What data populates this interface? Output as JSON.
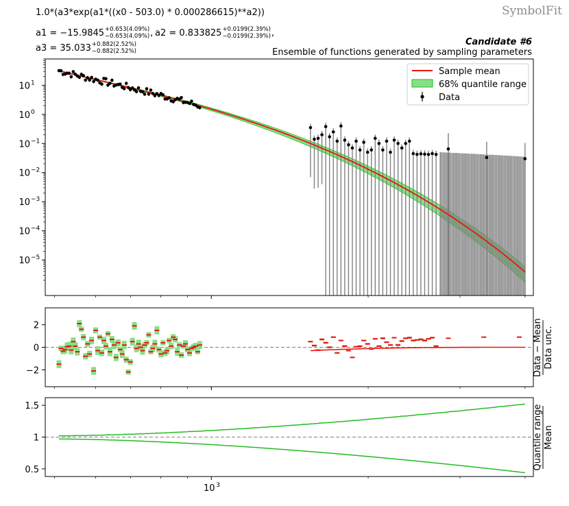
{
  "header": {
    "formula": "1.0*(a3*exp(a1*((x0 - 503.0) * 0.000286615)**a2))",
    "brand": "SymbolFit",
    "params": [
      {
        "name": "a1",
        "value": "−15.9845",
        "up": "+0.653(4.09%)",
        "down": "−0.653(4.09%)",
        "sep": ","
      },
      {
        "name": "a2",
        "value": "0.833825",
        "up": "+0.0199(2.39%)",
        "down": "−0.0199(2.39%)",
        "sep": ","
      },
      {
        "name": "a3",
        "value": "35.033",
        "up": "+0.882(2.52%)",
        "down": "−0.882(2.52%)",
        "sep": ""
      }
    ],
    "candidate": "Candidate #6",
    "subtitle": "Ensemble of functions generated by sampling parameters"
  },
  "colors": {
    "mean": "#e8150f",
    "band": "#87e087",
    "band_edge": "#22bb22",
    "data": "#000000",
    "error": "#808080",
    "residual_band": "#87e087",
    "dashed": "#808080"
  },
  "chart_data": [
    {
      "type": "line",
      "panel": "main",
      "yscale": "log",
      "xscale": "log",
      "xlim": [
        480,
        4150
      ],
      "ylim": [
        6e-07,
        80
      ],
      "ytick_labels": [
        "10^-5",
        "10^-4",
        "10^-3",
        "10^-2",
        "10^-1",
        "10^0",
        "10^1"
      ],
      "legend": {
        "position": "top-right",
        "entries": [
          "Sample mean",
          "68% quantile range",
          "Data"
        ]
      },
      "data_groups": [
        {
          "x_start": 510,
          "x_end": 950,
          "n": 70,
          "y_func": "mean",
          "rel_err": 0.14,
          "scatter": 0.12
        },
        {
          "x_start": 1550,
          "x_end": 2700,
          "n": 34,
          "y": [
            0.35,
            0.14,
            0.15,
            0.2,
            0.38,
            0.17,
            0.25,
            0.12,
            0.4,
            0.13,
            0.09,
            0.07,
            0.12,
            0.06,
            0.11,
            0.05,
            0.06,
            0.15,
            0.1,
            0.06,
            0.12,
            0.05,
            0.13,
            0.1,
            0.07,
            0.1,
            0.12,
            0.045,
            0.042,
            0.044,
            0.043,
            0.042,
            0.045,
            0.042
          ],
          "err": 0.35
        },
        {
          "x_start": 2850,
          "x_end": 4000,
          "n": 3,
          "y": [
            0.065,
            0.033,
            0.03
          ],
          "err": "high"
        }
      ],
      "trailing_error_bars": {
        "x_start": 2750,
        "x_end": 4000,
        "n": 58,
        "upper_start": 0.05,
        "upper_end": 0.035
      }
    },
    {
      "type": "scatter",
      "panel": "residual",
      "ylabel_num": "Data − Mean",
      "ylabel_den": "Data unc.",
      "ylim": [
        -3.5,
        3.5
      ],
      "yticks": [
        -2,
        0,
        2
      ],
      "ytick_labels": [
        "−2",
        "0",
        "2"
      ],
      "left_residuals": [
        -1.5,
        -0.1,
        -0.35,
        -0.2,
        0.05,
        0.1,
        -0.25,
        0.5,
        0.1,
        -0.4,
        2.1,
        1.6,
        0.9,
        -0.8,
        0.3,
        -0.6,
        0.6,
        -2.1,
        1.5,
        -0.3,
        0.9,
        -0.5,
        0.6,
        0.1,
        1.2,
        -0.4,
        0.7,
        0.2,
        -0.9,
        0.4,
        -0.2,
        -0.6,
        0.2,
        -1.1,
        -2.2,
        -1.3,
        0.5,
        1.9,
        -0.1,
        0.3,
        0.0,
        -0.3,
        0.2,
        0.4,
        1.1,
        -0.4,
        -0.1,
        0.3,
        1.5,
        -0.2,
        -0.6,
        0.4,
        -0.5,
        -0.3,
        0.6,
        0.1,
        0.9,
        0.7,
        -0.4,
        0.2,
        -0.7,
        0.1,
        0.3,
        -0.2,
        -0.5,
        -0.1,
        0.0,
        0.1,
        -0.4,
        0.2
      ],
      "right_residuals": [
        0.5,
        0.15,
        -0.25,
        0.7,
        0.4,
        0.0,
        0.9,
        -0.5,
        0.6,
        0.1,
        -0.3,
        -0.9,
        0.05,
        0.1,
        0.6,
        0.3,
        -0.15,
        0.75,
        0.1,
        0.8,
        0.45,
        0.2,
        0.85,
        0.2,
        0.55,
        0.8,
        0.85,
        0.6,
        0.65,
        0.7,
        0.6,
        0.75,
        0.85,
        0.1
      ],
      "far_residuals": [
        0.8,
        0.9,
        0.9
      ]
    },
    {
      "type": "line",
      "panel": "ratio",
      "ylabel_num": "Quantile range",
      "ylabel_den": "Mean",
      "ylim": [
        0.38,
        1.62
      ],
      "yticks": [
        0.5,
        1,
        1.5
      ],
      "ytick_labels": [
        "0.5",
        "1",
        "1.5"
      ],
      "xtick_label": "10^3",
      "xtick_value": 1000,
      "upper": {
        "start": 1.02,
        "end": 1.52
      },
      "lower": {
        "start": 0.97,
        "end": 0.44
      }
    }
  ]
}
